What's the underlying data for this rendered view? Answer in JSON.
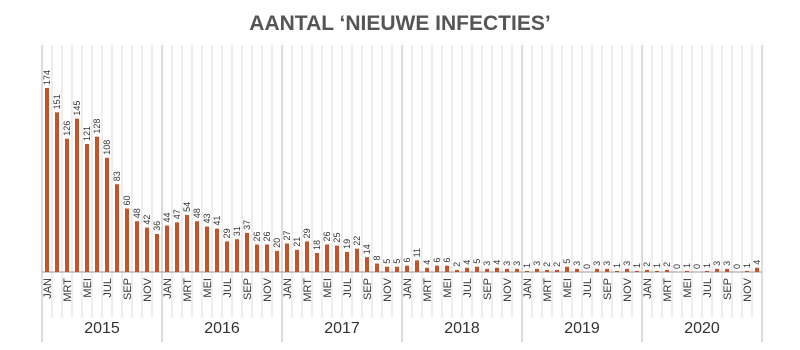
{
  "chart_data": {
    "type": "bar",
    "title": "AANTAL ‘NIEUWE INFECTIES’",
    "color": "#c4522a",
    "categories": [
      "JAN",
      null,
      "MRT",
      null,
      "MEI",
      null,
      "JUL",
      null,
      "SEP",
      null,
      "NOV",
      null,
      "JAN",
      null,
      "MRT",
      null,
      "MEI",
      null,
      "JUL",
      null,
      "SEP",
      null,
      "NOV",
      null,
      "JAN",
      null,
      "MRT",
      null,
      "MEI",
      null,
      "JUL",
      null,
      "SEP",
      null,
      "NOV",
      null,
      "JAN",
      null,
      "MRT",
      null,
      "MEI",
      null,
      "JUL",
      null,
      "SEP",
      null,
      "NOV",
      null,
      "JAN",
      null,
      "MRT",
      null,
      "MEI",
      null,
      "JUL",
      null,
      "SEP",
      null,
      "NOV",
      null,
      "JAN",
      null,
      "MRT",
      null,
      "MEI",
      null,
      "JUL",
      null,
      "SEP",
      null,
      "NOV",
      null
    ],
    "years": [
      "2015",
      "2016",
      "2017",
      "2018",
      "2019",
      "2020"
    ],
    "values": [
      174,
      151,
      126,
      145,
      121,
      128,
      108,
      83,
      60,
      48,
      42,
      36,
      44,
      47,
      54,
      48,
      43,
      41,
      29,
      31,
      37,
      26,
      26,
      20,
      27,
      21,
      29,
      18,
      26,
      25,
      19,
      22,
      14,
      8,
      5,
      5,
      6,
      11,
      4,
      6,
      6,
      2,
      4,
      5,
      3,
      4,
      3,
      3,
      1,
      3,
      2,
      2,
      5,
      3,
      0,
      3,
      3,
      1,
      3,
      1,
      2,
      1,
      2,
      0,
      1,
      0,
      1,
      3,
      3,
      0,
      1,
      4
    ]
  }
}
